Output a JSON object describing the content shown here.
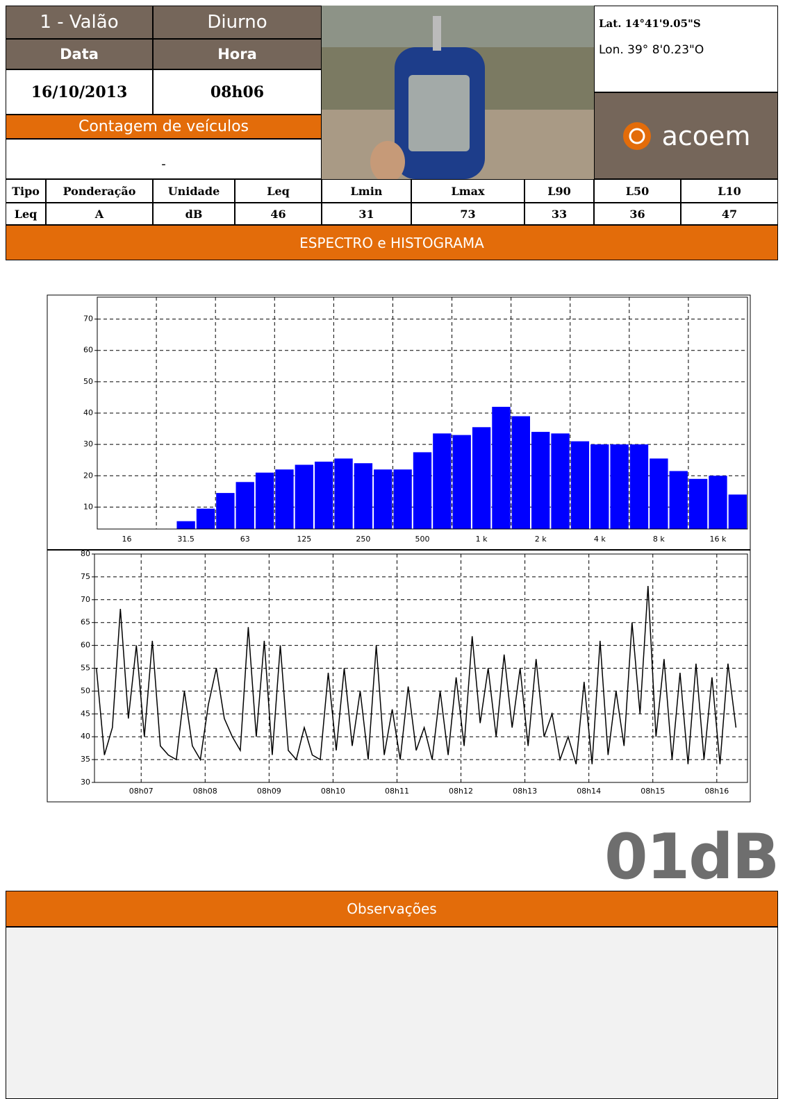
{
  "header": {
    "site": "1 - Valão",
    "period": "Diurno",
    "date_label": "Data",
    "time_label": "Hora",
    "date": "16/10/2013",
    "time": "08h06",
    "count_label": "Contagem de veículos",
    "count": "-",
    "lat": "Lat. 14°41'9.05\"S",
    "lon": "Lon.  39° 8'0.23\"O",
    "brand": "acoem"
  },
  "table": {
    "columns": [
      "Tipo",
      "Ponderação",
      "Unidade",
      "Leq",
      "Lmin",
      "Lmax",
      "L90",
      "L50",
      "L10"
    ],
    "rows": [
      [
        "Leq",
        "A",
        "dB",
        "46",
        "31",
        "73",
        "33",
        "36",
        "47"
      ]
    ]
  },
  "section_title": "ESPECTRO e HISTOGRAMA",
  "logo": "01dB",
  "notes_title": "Observações",
  "chart_data": [
    {
      "type": "bar",
      "categories": [
        null,
        "16",
        null,
        null,
        "31.5",
        null,
        null,
        "63",
        null,
        null,
        "125",
        null,
        null,
        "250",
        null,
        null,
        "500",
        null,
        null,
        "1 k",
        null,
        null,
        "2 k",
        null,
        null,
        "4 k",
        null,
        null,
        "8 k",
        null,
        null,
        "16 k",
        null
      ],
      "values": [
        null,
        null,
        null,
        null,
        5.5,
        9.5,
        14.5,
        18,
        21,
        22,
        23.5,
        24.5,
        25.5,
        24,
        22,
        22,
        27.5,
        33.5,
        33,
        35.5,
        42,
        39,
        34,
        33.5,
        31,
        30,
        30,
        30,
        25.5,
        21.5,
        19,
        20,
        14
      ],
      "color": "#0000ff",
      "ylim": [
        3,
        77
      ],
      "yticks": [
        10,
        20,
        30,
        40,
        50,
        60,
        70
      ],
      "grid": true
    },
    {
      "type": "line",
      "color": "#000000",
      "x": [
        6.3,
        6.425,
        6.55,
        6.675,
        6.8,
        6.925,
        7.05,
        7.175,
        7.3,
        7.425,
        7.55,
        7.675,
        7.8,
        7.925,
        8.05,
        8.175,
        8.3,
        8.425,
        8.55,
        8.675,
        8.8,
        8.925,
        9.05,
        9.175,
        9.3,
        9.425,
        9.55,
        9.675,
        9.8,
        9.925,
        10.05,
        10.175,
        10.3,
        10.425,
        10.55,
        10.675,
        10.8,
        10.925,
        11.05,
        11.175,
        11.3,
        11.425,
        11.55,
        11.675,
        11.8,
        11.925,
        12.05,
        12.175,
        12.3,
        12.425,
        12.55,
        12.675,
        12.8,
        12.925,
        13.05,
        13.175,
        13.3,
        13.425,
        13.55,
        13.675,
        13.8,
        13.925,
        14.05,
        14.175,
        14.3,
        14.425,
        14.55,
        14.675,
        14.8,
        14.925,
        15.05,
        15.175,
        15.3,
        15.425,
        15.55,
        15.675,
        15.8,
        15.925,
        16.05,
        16.175,
        16.3
      ],
      "values": [
        55,
        36,
        42,
        68,
        44,
        60,
        40,
        61,
        38,
        36,
        35,
        50,
        38,
        35,
        47,
        55,
        44,
        40,
        37,
        64,
        40,
        61,
        36,
        60,
        37,
        35,
        42,
        36,
        35,
        54,
        37,
        55,
        38,
        50,
        35,
        60,
        36,
        46,
        35,
        51,
        37,
        42,
        35,
        50,
        36,
        53,
        38,
        62,
        43,
        55,
        40,
        58,
        42,
        55,
        38,
        57,
        40,
        45,
        35,
        40,
        34,
        52,
        34,
        61,
        36,
        50,
        38,
        65,
        45,
        73,
        40,
        57,
        35,
        54,
        34,
        56,
        35,
        53,
        34,
        56,
        42
      ],
      "xlim": [
        6.27,
        16.48
      ],
      "xticks": [
        {
          "value": 7,
          "label": "08h07"
        },
        {
          "value": 8,
          "label": "08h08"
        },
        {
          "value": 9,
          "label": "08h09"
        },
        {
          "value": 10,
          "label": "08h10"
        },
        {
          "value": 11,
          "label": "08h11"
        },
        {
          "value": 12,
          "label": "08h12"
        },
        {
          "value": 13,
          "label": "08h13"
        },
        {
          "value": 14,
          "label": "08h14"
        },
        {
          "value": 15,
          "label": "08h15"
        },
        {
          "value": 16,
          "label": "08h16"
        }
      ],
      "ylim": [
        30,
        80
      ],
      "yticks": [
        30,
        35,
        40,
        45,
        50,
        55,
        60,
        65,
        70,
        75,
        80
      ],
      "grid": true
    }
  ]
}
